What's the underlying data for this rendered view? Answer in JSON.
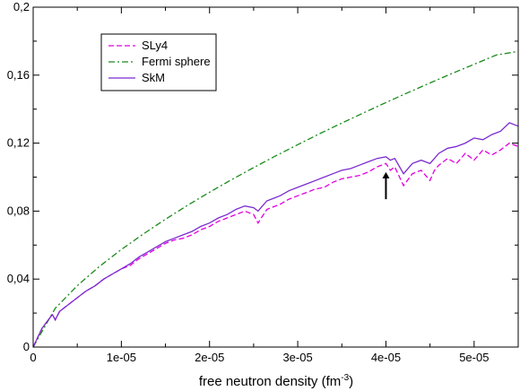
{
  "chart_data": {
    "type": "line",
    "title": "",
    "xlabel": "free neutron density (fm",
    "xlabel_sup": "-3",
    "xlabel_close": ")",
    "ylabel": "",
    "xlim": [
      0,
      5.5e-05
    ],
    "ylim": [
      0,
      0.2
    ],
    "x_ticks": [
      0,
      1e-05,
      2e-05,
      3e-05,
      4e-05,
      5e-05
    ],
    "x_tick_labels": [
      "0",
      "1e-05",
      "2e-05",
      "3e-05",
      "4e-05",
      "5e-05"
    ],
    "y_ticks": [
      0,
      0.04,
      0.08,
      0.12,
      0.16,
      0.2
    ],
    "y_tick_labels": [
      "0",
      "0,04",
      "0,08",
      "0,12",
      "0,16",
      "0,2"
    ],
    "grid": false,
    "legend_position": "top-left",
    "annotation": {
      "type": "arrow",
      "x": 4e-05,
      "y_from": 0.087,
      "y_to": 0.103
    },
    "series": [
      {
        "name": "SLy4",
        "color": "#e000e0",
        "style": "dashed",
        "x": [
          0,
          1e-06,
          2e-06,
          2.2e-06,
          2.5e-06,
          3e-06,
          4e-06,
          5e-06,
          6e-06,
          7e-06,
          8e-06,
          9e-06,
          1e-05,
          1.1e-05,
          1.2e-05,
          1.3e-05,
          1.4e-05,
          1.5e-05,
          1.6e-05,
          1.7e-05,
          1.8e-05,
          1.9e-05,
          2e-05,
          2.1e-05,
          2.2e-05,
          2.3e-05,
          2.4e-05,
          2.5e-05,
          2.55e-05,
          2.6e-05,
          2.65e-05,
          2.7e-05,
          2.8e-05,
          2.9e-05,
          3e-05,
          3.1e-05,
          3.2e-05,
          3.3e-05,
          3.4e-05,
          3.5e-05,
          3.6e-05,
          3.7e-05,
          3.8e-05,
          3.9e-05,
          4e-05,
          4.05e-05,
          4.1e-05,
          4.2e-05,
          4.3e-05,
          4.4e-05,
          4.5e-05,
          4.55e-05,
          4.6e-05,
          4.7e-05,
          4.8e-05,
          4.9e-05,
          5e-05,
          5.1e-05,
          5.2e-05,
          5.3e-05,
          5.4e-05,
          5.5e-05
        ],
        "y": [
          0,
          0.011,
          0.018,
          0.019,
          0.016,
          0.021,
          0.025,
          0.029,
          0.033,
          0.036,
          0.04,
          0.043,
          0.046,
          0.048,
          0.052,
          0.055,
          0.058,
          0.061,
          0.063,
          0.064,
          0.066,
          0.069,
          0.071,
          0.074,
          0.076,
          0.078,
          0.08,
          0.078,
          0.073,
          0.077,
          0.081,
          0.082,
          0.084,
          0.087,
          0.089,
          0.091,
          0.093,
          0.094,
          0.097,
          0.099,
          0.1,
          0.101,
          0.103,
          0.106,
          0.108,
          0.104,
          0.106,
          0.095,
          0.102,
          0.104,
          0.098,
          0.104,
          0.107,
          0.111,
          0.108,
          0.114,
          0.11,
          0.116,
          0.113,
          0.116,
          0.12,
          0.118
        ]
      },
      {
        "name": "Fermi sphere",
        "color": "#1a8a1a",
        "style": "dashdot",
        "x": [
          0,
          2.5e-06,
          5e-06,
          7.5e-06,
          1e-05,
          1.25e-05,
          1.5e-05,
          1.75e-05,
          2e-05,
          2.25e-05,
          2.5e-05,
          2.75e-05,
          3e-05,
          3.25e-05,
          3.5e-05,
          3.75e-05,
          4e-05,
          4.25e-05,
          4.5e-05,
          4.75e-05,
          5e-05,
          5.25e-05,
          5.5e-05
        ],
        "y": [
          0,
          0.0228,
          0.0361,
          0.0474,
          0.0574,
          0.0666,
          0.0752,
          0.0834,
          0.0911,
          0.0985,
          0.1056,
          0.1125,
          0.1191,
          0.1256,
          0.1318,
          0.1379,
          0.1439,
          0.1497,
          0.1554,
          0.161,
          0.1664,
          0.1718,
          0.174
        ]
      },
      {
        "name": "SkM",
        "color": "#7b2bd0",
        "style": "solid",
        "x": [
          0,
          1e-06,
          2e-06,
          2.2e-06,
          2.5e-06,
          3e-06,
          4e-06,
          5e-06,
          6e-06,
          7e-06,
          8e-06,
          9e-06,
          1e-05,
          1.1e-05,
          1.2e-05,
          1.3e-05,
          1.4e-05,
          1.5e-05,
          1.6e-05,
          1.7e-05,
          1.8e-05,
          1.9e-05,
          2e-05,
          2.1e-05,
          2.2e-05,
          2.3e-05,
          2.4e-05,
          2.5e-05,
          2.55e-05,
          2.6e-05,
          2.65e-05,
          2.7e-05,
          2.8e-05,
          2.9e-05,
          3e-05,
          3.1e-05,
          3.2e-05,
          3.3e-05,
          3.4e-05,
          3.5e-05,
          3.6e-05,
          3.7e-05,
          3.8e-05,
          3.9e-05,
          4e-05,
          4.05e-05,
          4.1e-05,
          4.2e-05,
          4.3e-05,
          4.4e-05,
          4.5e-05,
          4.6e-05,
          4.7e-05,
          4.8e-05,
          4.9e-05,
          5e-05,
          5.1e-05,
          5.2e-05,
          5.3e-05,
          5.4e-05,
          5.5e-05
        ],
        "y": [
          0,
          0.011,
          0.018,
          0.019,
          0.016,
          0.021,
          0.025,
          0.029,
          0.033,
          0.036,
          0.04,
          0.043,
          0.046,
          0.049,
          0.053,
          0.056,
          0.059,
          0.062,
          0.064,
          0.066,
          0.068,
          0.071,
          0.073,
          0.076,
          0.078,
          0.081,
          0.083,
          0.082,
          0.08,
          0.083,
          0.086,
          0.087,
          0.089,
          0.092,
          0.094,
          0.096,
          0.098,
          0.1,
          0.102,
          0.104,
          0.105,
          0.107,
          0.109,
          0.111,
          0.112,
          0.11,
          0.111,
          0.102,
          0.108,
          0.11,
          0.108,
          0.114,
          0.117,
          0.118,
          0.12,
          0.123,
          0.122,
          0.125,
          0.127,
          0.132,
          0.13
        ]
      }
    ]
  }
}
